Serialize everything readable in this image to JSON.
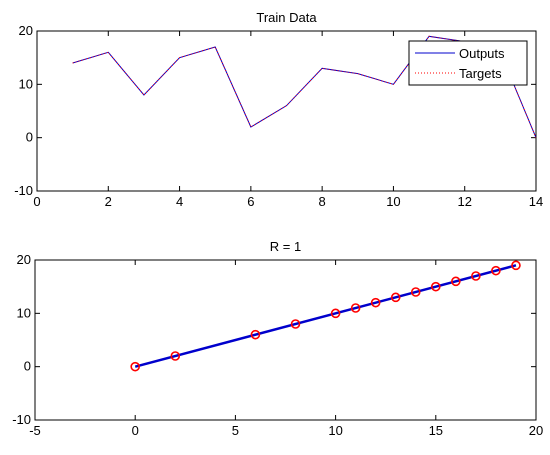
{
  "chart_data": [
    {
      "type": "line",
      "title": "Train Data",
      "xlim": [
        0,
        14
      ],
      "ylim": [
        -10,
        20
      ],
      "xticks": [
        0,
        2,
        4,
        6,
        8,
        10,
        12,
        14
      ],
      "yticks": [
        -10,
        0,
        10,
        20
      ],
      "grid": false,
      "legend_position": "top-right",
      "series": [
        {
          "name": "Outputs",
          "style": "solid",
          "color": "#0000cc",
          "x": [
            1,
            2,
            3,
            4,
            5,
            6,
            7,
            8,
            9,
            10,
            11,
            12,
            13,
            14
          ],
          "y": [
            14,
            16,
            8,
            15,
            17,
            2,
            6,
            13,
            12,
            10,
            19,
            18,
            16,
            0
          ]
        },
        {
          "name": "Targets",
          "style": "dotted",
          "color": "#ff0000",
          "x": [
            1,
            2,
            3,
            4,
            5,
            6,
            7,
            8,
            9,
            10,
            11,
            12,
            13,
            14
          ],
          "y": [
            14,
            16,
            8,
            15,
            17,
            2,
            6,
            13,
            12,
            10,
            19,
            18,
            16,
            0
          ]
        }
      ]
    },
    {
      "type": "scatter",
      "title": "R = 1",
      "xlim": [
        -5,
        20
      ],
      "ylim": [
        -10,
        20
      ],
      "xticks": [
        -5,
        0,
        5,
        10,
        15,
        20
      ],
      "yticks": [
        -10,
        0,
        10,
        20
      ],
      "grid": false,
      "points": {
        "marker": "circle",
        "color": "#ff0000",
        "x": [
          0,
          2,
          6,
          8,
          10,
          11,
          12,
          13,
          14,
          15,
          16,
          17,
          18,
          19
        ],
        "y": [
          0,
          2,
          6,
          8,
          10,
          11,
          12,
          13,
          14,
          15,
          16,
          17,
          18,
          19
        ]
      },
      "fit_line": {
        "color": "#0000cc",
        "x": [
          0,
          19
        ],
        "y": [
          0,
          19
        ]
      }
    }
  ]
}
